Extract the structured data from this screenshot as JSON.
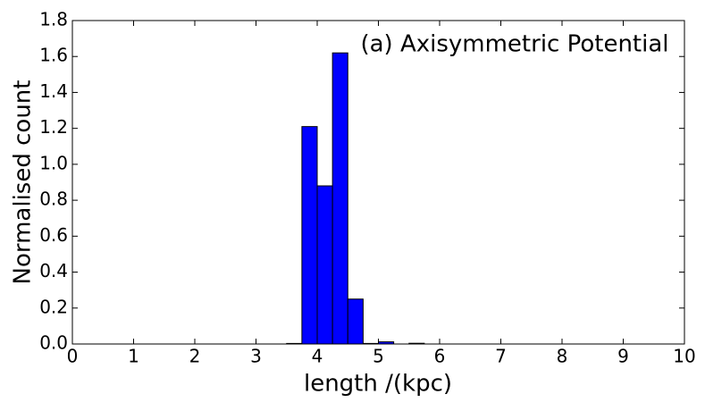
{
  "chart_data": {
    "type": "histogram",
    "annotation": "(a) Axisymmetric Potential",
    "x_label": "length /(kpc)",
    "y_label": "Normalised count",
    "bins": [
      3.5,
      3.75,
      4.0,
      4.25,
      4.5,
      4.75,
      5.0,
      5.25,
      5.5,
      5.75
    ],
    "values": [
      0.003,
      1.21,
      0.88,
      1.62,
      0.25,
      0.003,
      0.012,
      0,
      0.004
    ],
    "color": "#0000ff",
    "xlim": [
      0,
      10
    ],
    "xticks": [
      0,
      1,
      2,
      3,
      4,
      5,
      6,
      7,
      8,
      9,
      10
    ],
    "ylim": [
      0,
      1.8
    ],
    "yticks": [
      {
        "value": 0,
        "label": "0.0"
      },
      {
        "value": 0.2,
        "label": "0.2"
      },
      {
        "value": 0.4,
        "label": "0.4"
      },
      {
        "value": 0.6,
        "label": "0.6"
      },
      {
        "value": 0.8,
        "label": "0.8"
      },
      {
        "value": 1.0,
        "label": "1.0"
      },
      {
        "value": 1.2,
        "label": "1.2"
      },
      {
        "value": 1.4,
        "label": "1.4"
      },
      {
        "value": 1.6,
        "label": "1.6"
      },
      {
        "value": 1.8,
        "label": "1.8"
      }
    ]
  }
}
